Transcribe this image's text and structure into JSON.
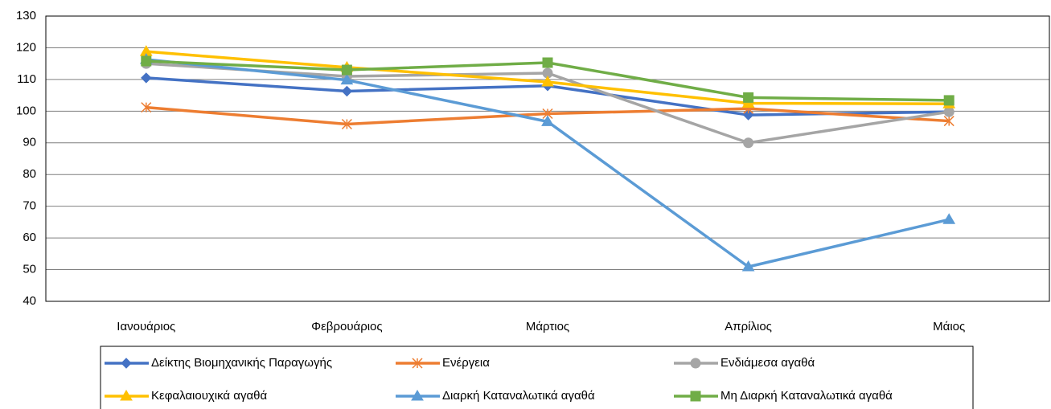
{
  "chart_data": {
    "type": "line",
    "categories": [
      "Ιανουάριος",
      "Φεβρουάριος",
      "Μάρτιος",
      "Απρίλιος",
      "Μάιος"
    ],
    "series": [
      {
        "name": "Δείκτης Βιομηχανικής Παραγωγής",
        "color": "#4472c4",
        "marker": "diamond",
        "values": [
          110.5,
          106.3,
          108,
          98.8,
          99.8
        ]
      },
      {
        "name": "Ενέργεια",
        "color": "#ed7d31",
        "marker": "star",
        "values": [
          101.2,
          95.9,
          99.2,
          100.8,
          96.9
        ]
      },
      {
        "name": "Ενδιάμεσα αγαθά",
        "color": "#a5a5a5",
        "marker": "circle",
        "values": [
          115,
          111,
          112,
          90,
          99.8
        ]
      },
      {
        "name": "Κεφαλαιουχικά αγαθά",
        "color": "#ffc000",
        "marker": "triangle",
        "values": [
          118.8,
          113.8,
          109.2,
          102.5,
          102.3
        ]
      },
      {
        "name": "Διαρκή Καταναλωτικά αγαθά",
        "color": "#5b9bd5",
        "marker": "triangle",
        "values": [
          116.3,
          109.8,
          96.7,
          50.9,
          65.8
        ]
      },
      {
        "name": "Μη Διαρκή Καταναλωτικά αγαθά",
        "color": "#70ad47",
        "marker": "square",
        "values": [
          115.8,
          113,
          115.3,
          104.3,
          103.4
        ]
      }
    ],
    "ylim": [
      40,
      130
    ],
    "yticks": [
      40,
      50,
      60,
      70,
      80,
      90,
      100,
      110,
      120,
      130
    ],
    "grid": true,
    "legend": "bottom"
  }
}
